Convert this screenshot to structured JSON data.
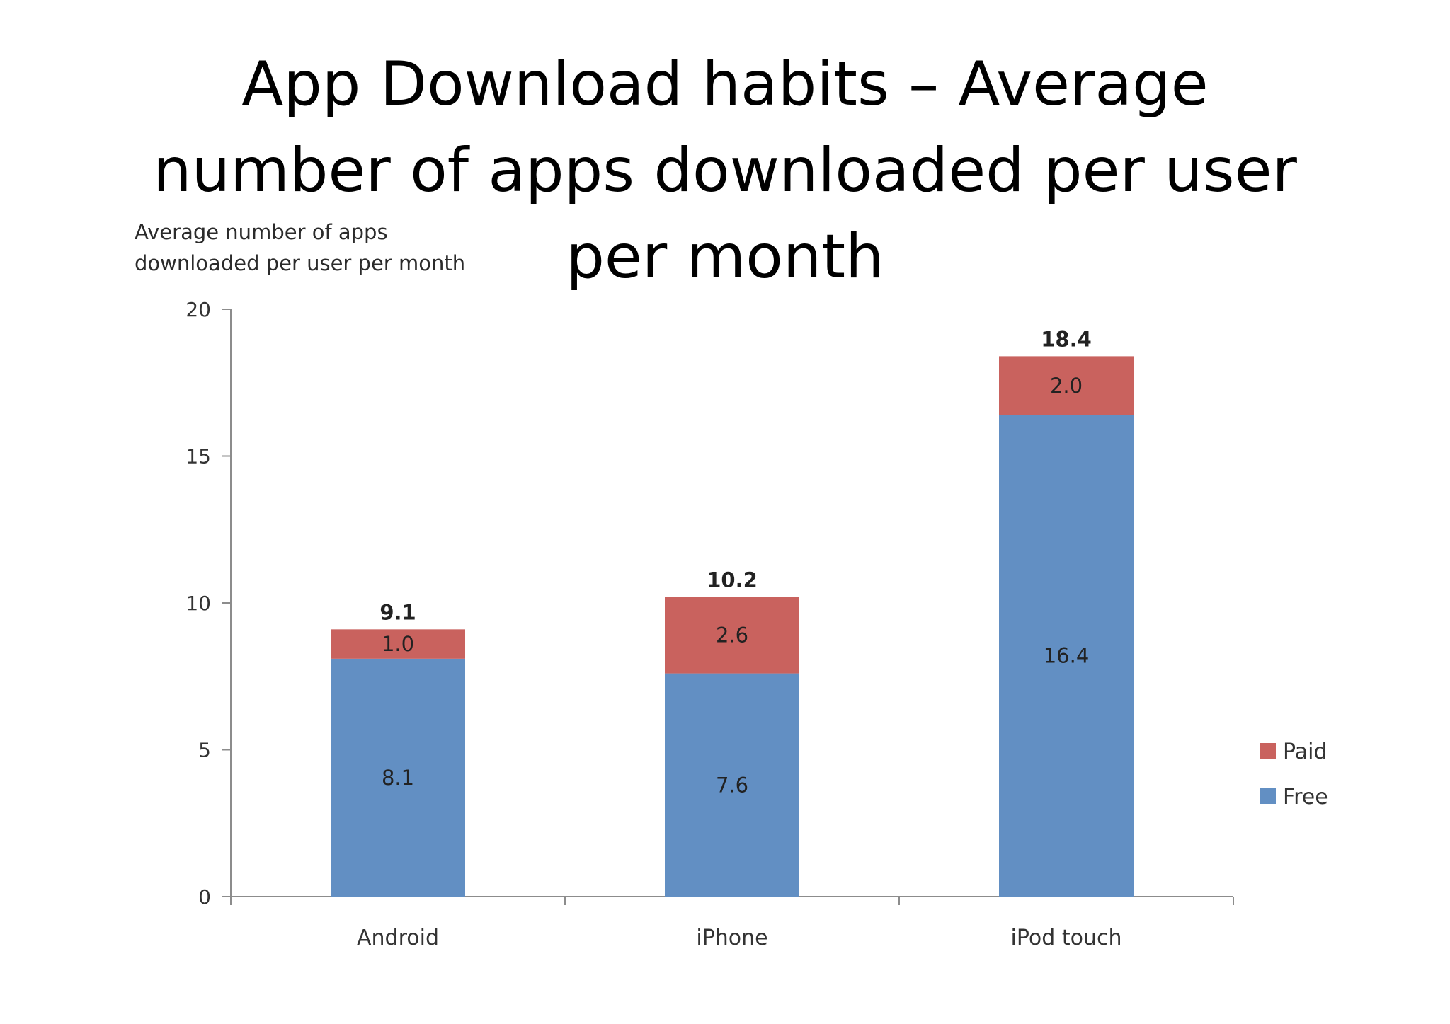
{
  "slide": {
    "title_lines": [
      "App Download habits – Average",
      "number of apps downloaded per user",
      "per month"
    ]
  },
  "chart_data": {
    "type": "bar",
    "stacked": true,
    "title": "",
    "ylabel_lines": [
      "Average number of apps",
      "downloaded per user per month"
    ],
    "xlabel": "",
    "categories": [
      "Android",
      "iPhone",
      "iPod touch"
    ],
    "series": [
      {
        "name": "Free",
        "values": [
          8.1,
          7.6,
          16.4
        ],
        "labels": [
          "8.1",
          "7.6",
          "16.4"
        ],
        "color": "#628fc3"
      },
      {
        "name": "Paid",
        "values": [
          1.0,
          2.6,
          2.0
        ],
        "labels": [
          "1.0",
          "2.6",
          "2.0"
        ],
        "color": "#c9625e"
      }
    ],
    "totals": [
      "9.1",
      "10.2",
      "18.4"
    ],
    "ylim": [
      0,
      20
    ],
    "yticks": [
      0,
      5,
      10,
      15,
      20
    ],
    "grid": false,
    "legend_position": "right",
    "legend_order": [
      "Paid",
      "Free"
    ]
  }
}
